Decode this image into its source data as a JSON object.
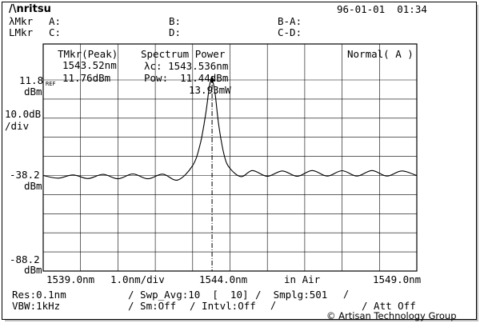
{
  "header": {
    "logo": "/\\nritsu",
    "datetime": "96-01-01  01:34",
    "lambda_mkr_label": "λMkr",
    "l_mkr_label": "LMkr",
    "marker_a": "A:",
    "marker_b": "B:",
    "marker_b_minus_a": "B-A:",
    "marker_c": "C:",
    "marker_d": "D:",
    "marker_c_minus_d": "C-D:"
  },
  "left_scale": {
    "ref_level": "11.8",
    "ref_label": "REF",
    "ref_unit": "dBm",
    "div_value": "10.0dB",
    "div_unit": "/div",
    "mid_level": "-38.2",
    "mid_unit": "dBm",
    "bottom_level": "-88.2",
    "bottom_unit": "dBm"
  },
  "plot_annotations": {
    "tmkr_title": "TMkr(Peak)",
    "tmkr_wavelength": "1543.52nm",
    "tmkr_level": "11.76dBm",
    "spectrum_title": "Spectrum Power",
    "center_wavelength": "λc: 1543.536nm",
    "power_dbm": "Pow:  11.44dBm",
    "power_mw": "13.93mW",
    "mode": "Normal( A )"
  },
  "x_axis": {
    "start": "1539.0nm",
    "span_per_div": "1.0nm/div",
    "center": "1544.0nm",
    "medium": "in Air",
    "stop": "1549.0nm"
  },
  "settings": {
    "resolution": "Res:0.1nm",
    "vbw": "VBW:1kHz",
    "sweep_avg": "/ Swp_Avg:10  [  10]",
    "sampling": "/  Smplg:501",
    "smoothing": "/ Sm:Off",
    "interval": "/ Intvl:Off",
    "attenuator": "/ Att Off"
  },
  "copyright": "© Artisan Technology Group",
  "chart_data": {
    "type": "line",
    "xlabel": "",
    "ylabel": "",
    "x_range_nm": [
      1539.0,
      1549.0
    ],
    "y_range_dbm": [
      -88.2,
      11.8
    ],
    "grid": true,
    "marker_x_nm": 1543.52,
    "series": [
      {
        "x": [
          1539.0,
          1539.4,
          1539.8,
          1540.2,
          1540.6,
          1541.0,
          1541.4,
          1541.8,
          1542.2,
          1542.6,
          1543.0,
          1543.2,
          1543.35,
          1543.45,
          1543.52,
          1543.6,
          1543.7,
          1543.85,
          1544.0,
          1544.3,
          1544.6,
          1545.0,
          1545.4,
          1545.8,
          1546.2,
          1546.6,
          1547.0,
          1547.4,
          1547.8,
          1548.2,
          1548.6,
          1549.0
        ],
        "y": [
          -38.2,
          -39.6,
          -37.9,
          -39.8,
          -37.6,
          -39.9,
          -37.4,
          -39.9,
          -37.5,
          -40.6,
          -33.0,
          -22.0,
          -6.0,
          8.5,
          11.76,
          5.0,
          -12.0,
          -28.0,
          -34.5,
          -38.8,
          -35.6,
          -38.6,
          -35.8,
          -38.6,
          -35.6,
          -38.5,
          -35.7,
          -38.5,
          -35.6,
          -38.5,
          -35.8,
          -38.3
        ]
      }
    ]
  }
}
